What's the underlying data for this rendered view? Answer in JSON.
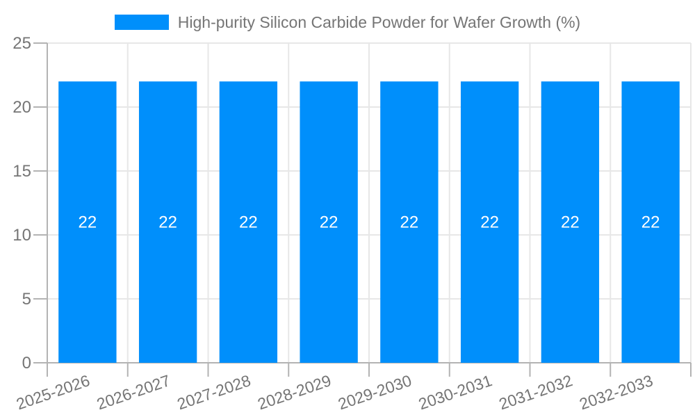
{
  "chart_data": {
    "type": "bar",
    "title": "",
    "legend": "High-purity Silicon Carbide Powder for Wafer Growth (%)",
    "legend_position": "top",
    "categories": [
      "2025-2026",
      "2026-2027",
      "2027-2028",
      "2028-2029",
      "2029-2030",
      "2030-2031",
      "2031-2032",
      "2032-2033"
    ],
    "series": [
      {
        "name": "High-purity Silicon Carbide Powder for Wafer Growth (%)",
        "values": [
          22,
          22,
          22,
          22,
          22,
          22,
          22,
          22
        ]
      }
    ],
    "bar_labels": [
      "22",
      "22",
      "22",
      "22",
      "22",
      "22",
      "22",
      "22"
    ],
    "ylabel": "",
    "xlabel": "",
    "ylim": [
      0,
      25
    ],
    "yticks": [
      0,
      5,
      10,
      15,
      20,
      25
    ],
    "grid": true,
    "x_label_rotation_deg": -19,
    "colors": {
      "bar": "#008FFB",
      "axis_label": "#757575",
      "gridline": "#e7e7e7",
      "axis_line": "#b3b3b3",
      "bar_label": "#ffffff",
      "background": "#ffffff"
    }
  }
}
